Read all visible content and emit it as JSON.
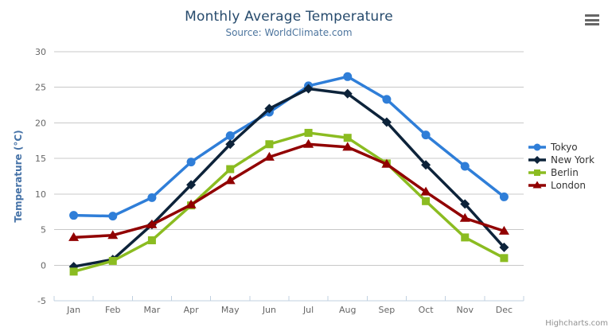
{
  "header": {
    "title": "Monthly Average Temperature",
    "subtitle": "Source: WorldClimate.com"
  },
  "credits": {
    "label": "Highcharts.com"
  },
  "chart_data": {
    "type": "line",
    "title": "Monthly Average Temperature",
    "subtitle": "Source: WorldClimate.com",
    "categories": [
      "Jan",
      "Feb",
      "Mar",
      "Apr",
      "May",
      "Jun",
      "Jul",
      "Aug",
      "Sep",
      "Oct",
      "Nov",
      "Dec"
    ],
    "series": [
      {
        "name": "Tokyo",
        "color": "#2f7ed8",
        "marker": "circle",
        "values": [
          7.0,
          6.9,
          9.5,
          14.5,
          18.2,
          21.5,
          25.2,
          26.5,
          23.3,
          18.3,
          13.9,
          9.6
        ]
      },
      {
        "name": "New York",
        "color": "#0d233a",
        "marker": "diamond",
        "values": [
          -0.2,
          0.8,
          5.7,
          11.3,
          17.0,
          22.0,
          24.8,
          24.1,
          20.1,
          14.1,
          8.6,
          2.5
        ]
      },
      {
        "name": "Berlin",
        "color": "#8bbc21",
        "marker": "square",
        "values": [
          -0.9,
          0.6,
          3.5,
          8.4,
          13.5,
          17.0,
          18.6,
          17.9,
          14.3,
          9.0,
          3.9,
          1.0
        ]
      },
      {
        "name": "London",
        "color": "#910000",
        "marker": "triangle",
        "values": [
          3.9,
          4.2,
          5.7,
          8.5,
          11.9,
          15.2,
          17.0,
          16.6,
          14.2,
          10.3,
          6.6,
          4.8
        ]
      }
    ],
    "xlabel": "",
    "ylabel": "Temperature (°C)",
    "ylim": [
      -5,
      30
    ],
    "tick_interval": 5,
    "grid": true,
    "legend_position": "right",
    "colors": {
      "gridline": "#c8c8c8",
      "axis_line": "#c0d0e0",
      "tick_label": "#666666",
      "axis_title": "#4572a7",
      "title": "#274b6d",
      "subtitle": "#4d759e"
    }
  }
}
